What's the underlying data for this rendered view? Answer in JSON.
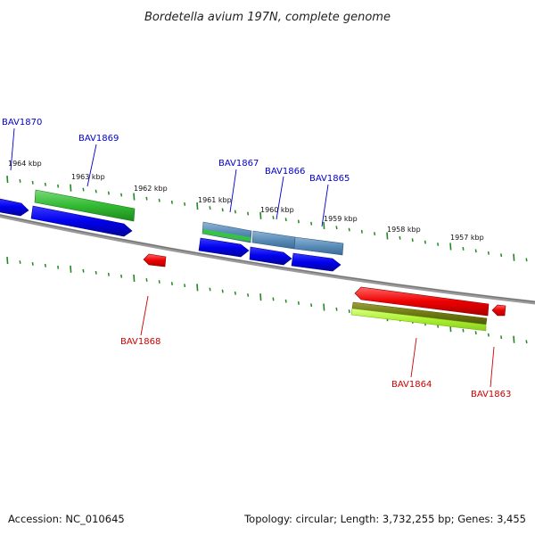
{
  "title": "Bordetella avium 197N, complete genome",
  "footer": {
    "accession": "Accession: NC_010645",
    "summary": "Topology: circular; Length: 3,732,255 bp; Genes: 3,455"
  },
  "colors": {
    "forward_label": "#0000cc",
    "reverse_label": "#cc0000",
    "tick": "#228822",
    "backbone": "#888888"
  },
  "kbp_labels": [
    "1964 kbp",
    "1963 kbp",
    "1962 kbp",
    "1961 kbp",
    "1960 kbp",
    "1959 kbp",
    "1958 kbp",
    "1957 kbp"
  ],
  "forward_genes": [
    "BAV1870",
    "BAV1869",
    "BAV1867",
    "BAV1866",
    "BAV1865"
  ],
  "reverse_genes": [
    "BAV1868",
    "BAV1864",
    "BAV1863"
  ]
}
